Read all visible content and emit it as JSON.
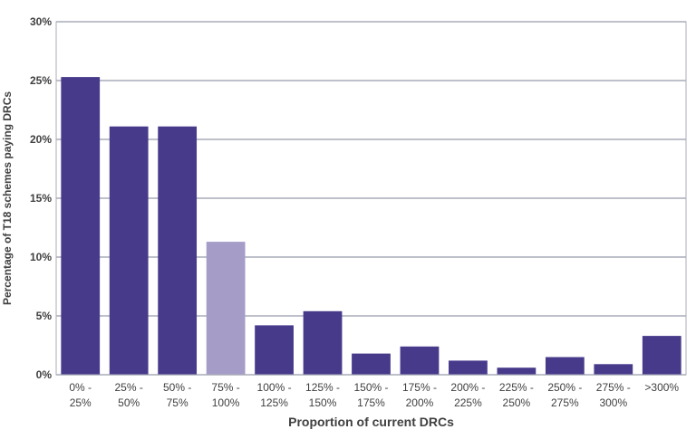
{
  "chart_data": {
    "type": "bar",
    "categories": [
      [
        "0% -",
        "25%"
      ],
      [
        "25% -",
        "50%"
      ],
      [
        "50% -",
        "75%"
      ],
      [
        "75% -",
        "100%"
      ],
      [
        "100% -",
        "125%"
      ],
      [
        "125% -",
        "150%"
      ],
      [
        "150% -",
        "175%"
      ],
      [
        "175% -",
        "200%"
      ],
      [
        "200% -",
        "225%"
      ],
      [
        "225% -",
        "250%"
      ],
      [
        "250% -",
        "275%"
      ],
      [
        "275% -",
        "300%"
      ],
      [
        ">300%"
      ]
    ],
    "values": [
      25.3,
      21.1,
      21.1,
      11.3,
      4.2,
      5.4,
      1.8,
      2.4,
      1.2,
      0.6,
      1.5,
      0.9,
      3.3
    ],
    "bar_colors": [
      "#483a8b",
      "#483a8b",
      "#483a8b",
      "#a59dc8",
      "#483a8b",
      "#483a8b",
      "#483a8b",
      "#483a8b",
      "#483a8b",
      "#483a8b",
      "#483a8b",
      "#483a8b",
      "#483a8b"
    ],
    "xlabel": "Proportion of current DRCs",
    "ylabel": "Percentage of T18 schemes paying DRCs",
    "ylim": [
      0,
      30
    ],
    "yticks": [
      0,
      5,
      10,
      15,
      20,
      25,
      30
    ],
    "ytick_labels": [
      "0%",
      "5%",
      "10%",
      "15%",
      "20%",
      "25%",
      "30%"
    ],
    "grid": true,
    "gridline_color": "#a9acb8",
    "legend": "none"
  }
}
